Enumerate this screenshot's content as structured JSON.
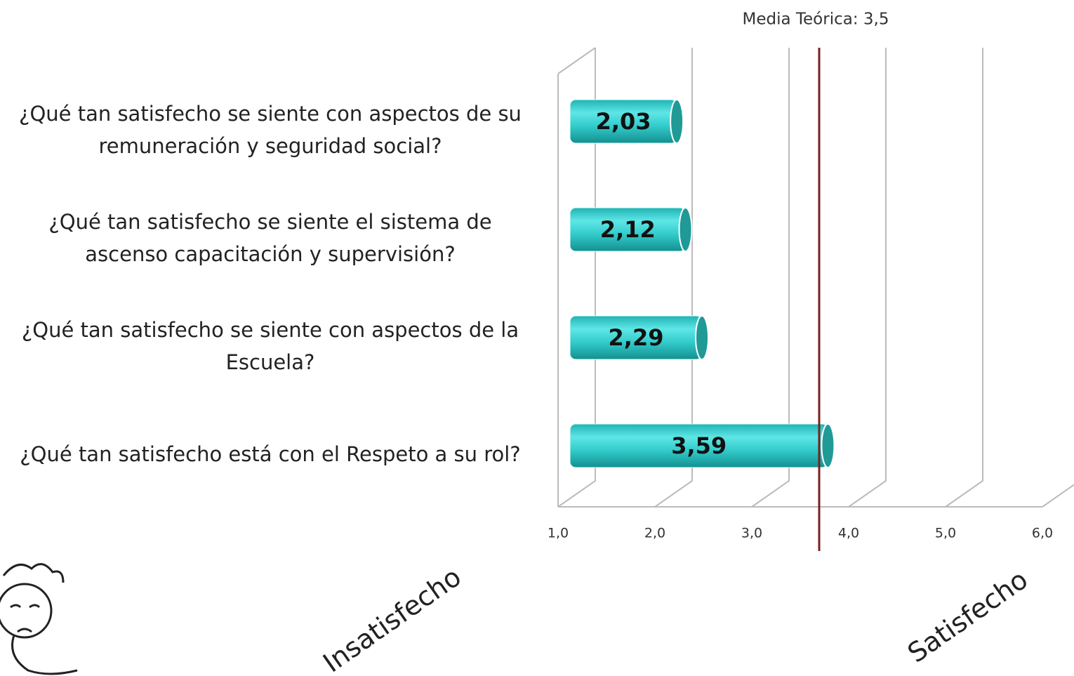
{
  "chart_data": {
    "type": "bar3d-horizontal",
    "categories": [
      "¿Qué tan satisfecho se siente con aspectos de su remuneración y seguridad social?",
      "¿Qué tan satisfecho se siente el sistema de ascenso capacitación y supervisión?",
      "¿Qué tan satisfecho se siente con  aspectos de la Escuela?",
      "¿Qué tan satisfecho está  con el Respeto a su rol?"
    ],
    "values": [
      2.03,
      2.12,
      2.29,
      3.59
    ],
    "value_labels": [
      "2,03",
      "2,12",
      "2,29",
      "3,59"
    ],
    "color": "#34cccc",
    "xlim": [
      1,
      6
    ],
    "xticks": [
      {
        "value": 1,
        "label": "1,0"
      },
      {
        "value": 2,
        "label": "2,0"
      },
      {
        "value": 3,
        "label": "3,0"
      },
      {
        "value": 4,
        "label": "4,0"
      },
      {
        "value": 5,
        "label": "5,0"
      },
      {
        "value": 6,
        "label": "6,0"
      }
    ],
    "grid": true,
    "reference_line": {
      "value": 3.5,
      "label": "Media Teórica: 3,5",
      "color": "#7a1f1f"
    },
    "annotations": [
      "Insatisfecho",
      "Satisfecho"
    ]
  }
}
